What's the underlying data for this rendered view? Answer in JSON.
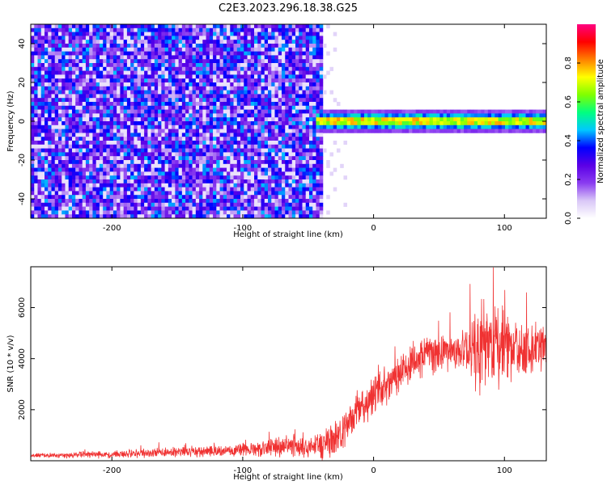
{
  "title": "C2E3.2023.296.18.38.G25",
  "chart_data": [
    {
      "type": "heatmap",
      "name": "spectrogram",
      "xlabel": "Height of straight line (km)",
      "ylabel": "Frequency (Hz)",
      "xlim": [
        -262,
        132
      ],
      "ylim": [
        -50,
        50
      ],
      "xticks": [
        -200,
        -100,
        0,
        100
      ],
      "yticks": [
        -40,
        -20,
        0,
        20,
        40
      ],
      "colorbar": {
        "label": "Normalized spectral amplitude",
        "range": [
          0,
          1
        ],
        "ticks": [
          "0.0",
          "0.2",
          "0.4",
          "0.6",
          "0.8"
        ],
        "colormap": [
          "#ffffff",
          "#d9c7f7",
          "#8a3cf0",
          "#5a00e6",
          "#0000ff",
          "#00c8ff",
          "#00ff80",
          "#7fff00",
          "#ffff00",
          "#ff8000",
          "#ff0000",
          "#ff0080"
        ]
      },
      "noise_region_x": [
        -262,
        -40
      ],
      "signal_region_x": [
        -45,
        132
      ],
      "signal_frequency_hz": 0,
      "signal_bandwidth_hz": [
        -4,
        4
      ],
      "signal_peak_amplitude": 0.95,
      "noise_amplitude": [
        0.1,
        0.45
      ]
    },
    {
      "type": "line",
      "name": "snr",
      "xlabel": "Height of straight line (km)",
      "ylabel": "SNR (10 * v/v)",
      "xlim": [
        -262,
        132
      ],
      "ylim": [
        0,
        7600
      ],
      "xticks": [
        -200,
        -100,
        0,
        100
      ],
      "yticks": [
        2000,
        4000,
        6000
      ],
      "color": "#f03232",
      "trend": {
        "x": [
          -262,
          -200,
          -150,
          -110,
          -60,
          -40,
          -30,
          -20,
          -10,
          0,
          10,
          20,
          30,
          40,
          55,
          70,
          80,
          90,
          100,
          110,
          120,
          132
        ],
        "y": [
          200,
          250,
          330,
          380,
          560,
          600,
          900,
          1300,
          2000,
          2500,
          2900,
          3300,
          3900,
          4200,
          4250,
          4350,
          4350,
          4500,
          4400,
          4300,
          4300,
          4350
        ]
      },
      "spread": {
        "x": [
          -262,
          -100,
          -45,
          -30,
          -10,
          30,
          70,
          80,
          95,
          110,
          132
        ],
        "y": [
          100,
          300,
          600,
          900,
          900,
          1000,
          900,
          2300,
          1800,
          1300,
          1100
        ]
      }
    }
  ]
}
